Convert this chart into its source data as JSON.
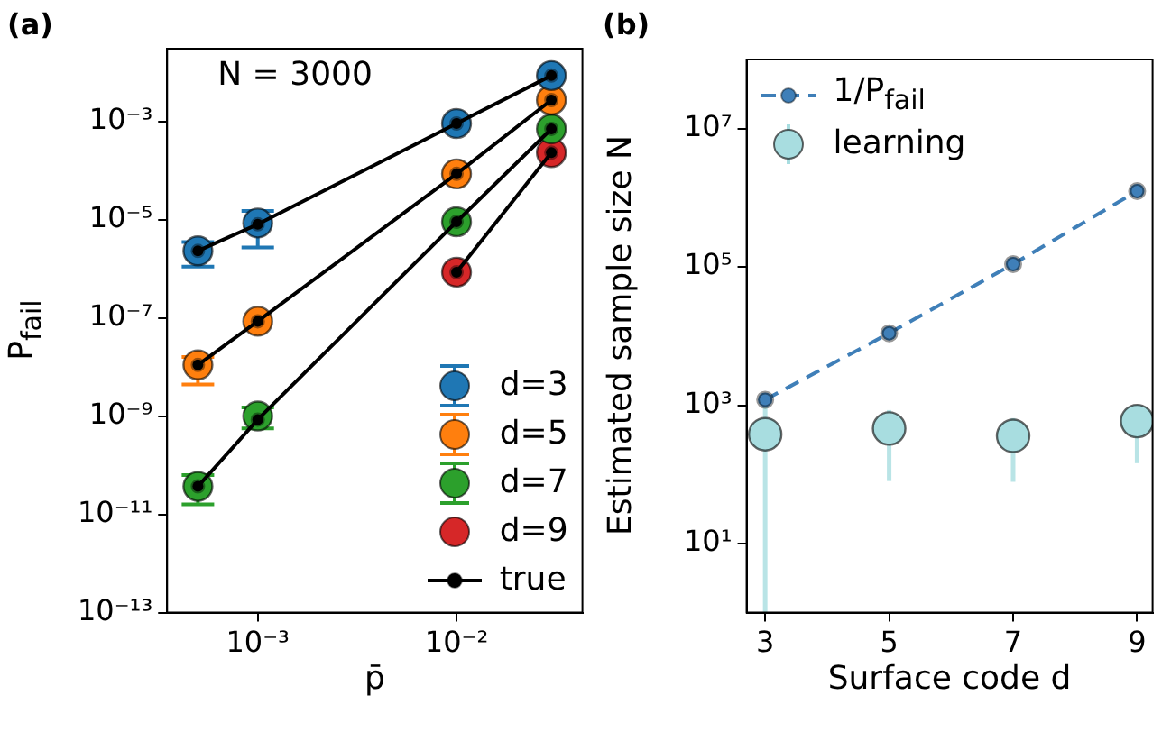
{
  "chart_data": [
    {
      "type": "scatter",
      "title": "(a)",
      "xlabel": "p̄",
      "ylabel": "P$_{fail}$",
      "annotations": [
        "N = 3000"
      ],
      "log": "xy",
      "xlim": [
        0.00035,
        0.043
      ],
      "ylim": [
        1e-13,
        0.03
      ],
      "xticks": [
        {
          "value": 0.001,
          "label": "10⁻³"
        },
        {
          "value": 0.01,
          "label": "10⁻²"
        }
      ],
      "yticks": [
        {
          "value": 1e-13,
          "label": "10⁻¹³"
        },
        {
          "value": 1e-11,
          "label": "10⁻¹¹"
        },
        {
          "value": 1e-09,
          "label": "10⁻⁹"
        },
        {
          "value": 1e-07,
          "label": "10⁻⁷"
        },
        {
          "value": 1e-05,
          "label": "10⁻⁵"
        },
        {
          "value": 0.001,
          "label": "10⁻³"
        }
      ],
      "legend": "bottom right",
      "marker": "circle",
      "line_style": "solid",
      "series": [
        {
          "name": "d=3",
          "type": "scatter",
          "color": "#1f77b4",
          "x": [
            0.0005,
            0.001,
            0.01,
            0.03
          ],
          "values": [
            2.3e-06,
            8.5e-06,
            0.0009,
            0.0085
          ],
          "errors": [
            [
              1.1e-06,
              3.5e-06
            ],
            [
              2.7e-06,
              1.5e-05
            ],
            null,
            null
          ]
        },
        {
          "name": "d=5",
          "type": "scatter",
          "color": "#ff7f0e",
          "x": [
            0.0005,
            0.001,
            0.01,
            0.03
          ],
          "values": [
            1.1e-08,
            8.5e-08,
            8.5e-05,
            0.0027
          ],
          "errors": [
            [
              4.4e-09,
              1.6e-08
            ],
            null,
            null,
            null
          ]
        },
        {
          "name": "d=7",
          "type": "scatter",
          "color": "#2ca02c",
          "x": [
            0.0005,
            0.001,
            0.01,
            0.03
          ],
          "values": [
            3.7e-11,
            1e-09,
            9e-06,
            0.0007
          ],
          "errors": [
            [
              1.6e-11,
              6.3e-11
            ],
            [
              5.6e-10,
              1.5e-09
            ],
            null,
            null
          ]
        },
        {
          "name": "d=9",
          "type": "scatter",
          "color": "#d62728",
          "x": [
            0.01,
            0.03
          ],
          "values": [
            8.5e-07,
            0.00023
          ]
        },
        {
          "name": "true",
          "type": "line",
          "color": "#000000",
          "x": [
            0.0005,
            0.001,
            0.01,
            0.03
          ],
          "values": [
            2.3e-06,
            8e-06,
            0.0009,
            0.0085
          ]
        },
        {
          "type": "line",
          "color": "#000000",
          "x": [
            0.0005,
            0.001,
            0.01,
            0.03
          ],
          "values": [
            1.1e-08,
            8.5e-08,
            8.5e-05,
            0.0027
          ]
        },
        {
          "type": "line",
          "color": "#000000",
          "x": [
            0.0005,
            0.001,
            0.01,
            0.03
          ],
          "values": [
            3.7e-11,
            8.5e-10,
            9e-06,
            0.0007
          ]
        },
        {
          "type": "line",
          "color": "#000000",
          "x": [
            0.01,
            0.03
          ],
          "values": [
            8.5e-07,
            0.00023
          ]
        }
      ]
    },
    {
      "type": "scatter",
      "title": "(b)",
      "xlabel": "Surface code d",
      "ylabel": "Estimated sample size N",
      "log": "y",
      "xlim": [
        2.7,
        9.25
      ],
      "ylim": [
        1,
        100000000
      ],
      "xticks": [
        3,
        5,
        7,
        9
      ],
      "yticks": [
        {
          "value": 10,
          "label": "10¹"
        },
        {
          "value": 1000,
          "label": "10³"
        },
        {
          "value": 100000,
          "label": "10⁵"
        },
        {
          "value": 10000000,
          "label": "10⁷"
        }
      ],
      "legend": "top left",
      "marker": "circle",
      "line_style": "dashed",
      "series": [
        {
          "name": "1/P$_{fail}$",
          "type": "line",
          "color": "#3f7fb8",
          "x": [
            3,
            5,
            7,
            9
          ],
          "values": [
            1200,
            11000,
            110000,
            1250000
          ]
        },
        {
          "name": "learning",
          "type": "scatter",
          "color": "#a8dde0",
          "x": [
            3,
            5,
            7,
            9
          ],
          "values": [
            380,
            460,
            360,
            590
          ],
          "errors": [
            [
              1,
              1000
            ],
            [
              80,
              850
            ],
            [
              78,
              650
            ],
            [
              145,
              1000
            ]
          ]
        }
      ]
    }
  ]
}
